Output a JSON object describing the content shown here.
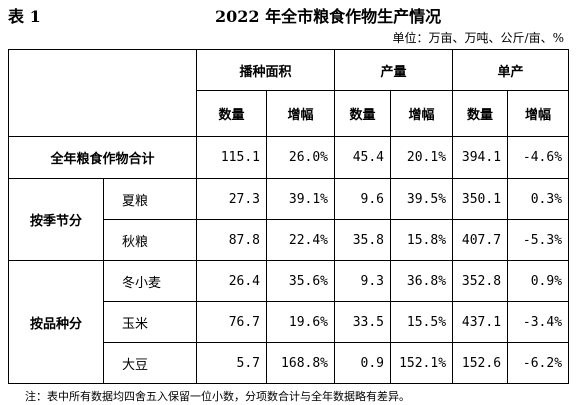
{
  "table_label": "表 1",
  "title": "2022 年全市粮食作物生产情况",
  "unit": "单位：万亩、万吨、公斤/亩、%",
  "headers": {
    "groups": [
      "播种面积",
      "产量",
      "单产"
    ],
    "sub": [
      "数量",
      "增幅",
      "数量",
      "增幅",
      "数量",
      "增幅"
    ]
  },
  "total": {
    "label": "全年粮食作物合计",
    "values": [
      "115.1",
      "26.0%",
      "45.4",
      "20.1%",
      "394.1",
      "-4.6%"
    ]
  },
  "by_season": {
    "label": "按季节分",
    "rows": [
      {
        "name": "夏粮",
        "values": [
          "27.3",
          "39.1%",
          "9.6",
          "39.5%",
          "350.1",
          "0.3%"
        ]
      },
      {
        "name": "秋粮",
        "values": [
          "87.8",
          "22.4%",
          "35.8",
          "15.8%",
          "407.7",
          "-5.3%"
        ]
      }
    ]
  },
  "by_variety": {
    "label": "按品种分",
    "rows": [
      {
        "name": "冬小麦",
        "values": [
          "26.4",
          "35.6%",
          "9.3",
          "36.8%",
          "352.8",
          "0.9%"
        ]
      },
      {
        "name": "玉米",
        "values": [
          "76.7",
          "19.6%",
          "33.5",
          "15.5%",
          "437.1",
          "-3.4%"
        ]
      },
      {
        "name": "大豆",
        "values": [
          "5.7",
          "168.8%",
          "0.9",
          "152.1%",
          "152.6",
          "-6.2%"
        ]
      }
    ]
  },
  "note": "注：表中所有数据均四舍五入保留一位小数，分项数合计与全年数据略有差异。"
}
